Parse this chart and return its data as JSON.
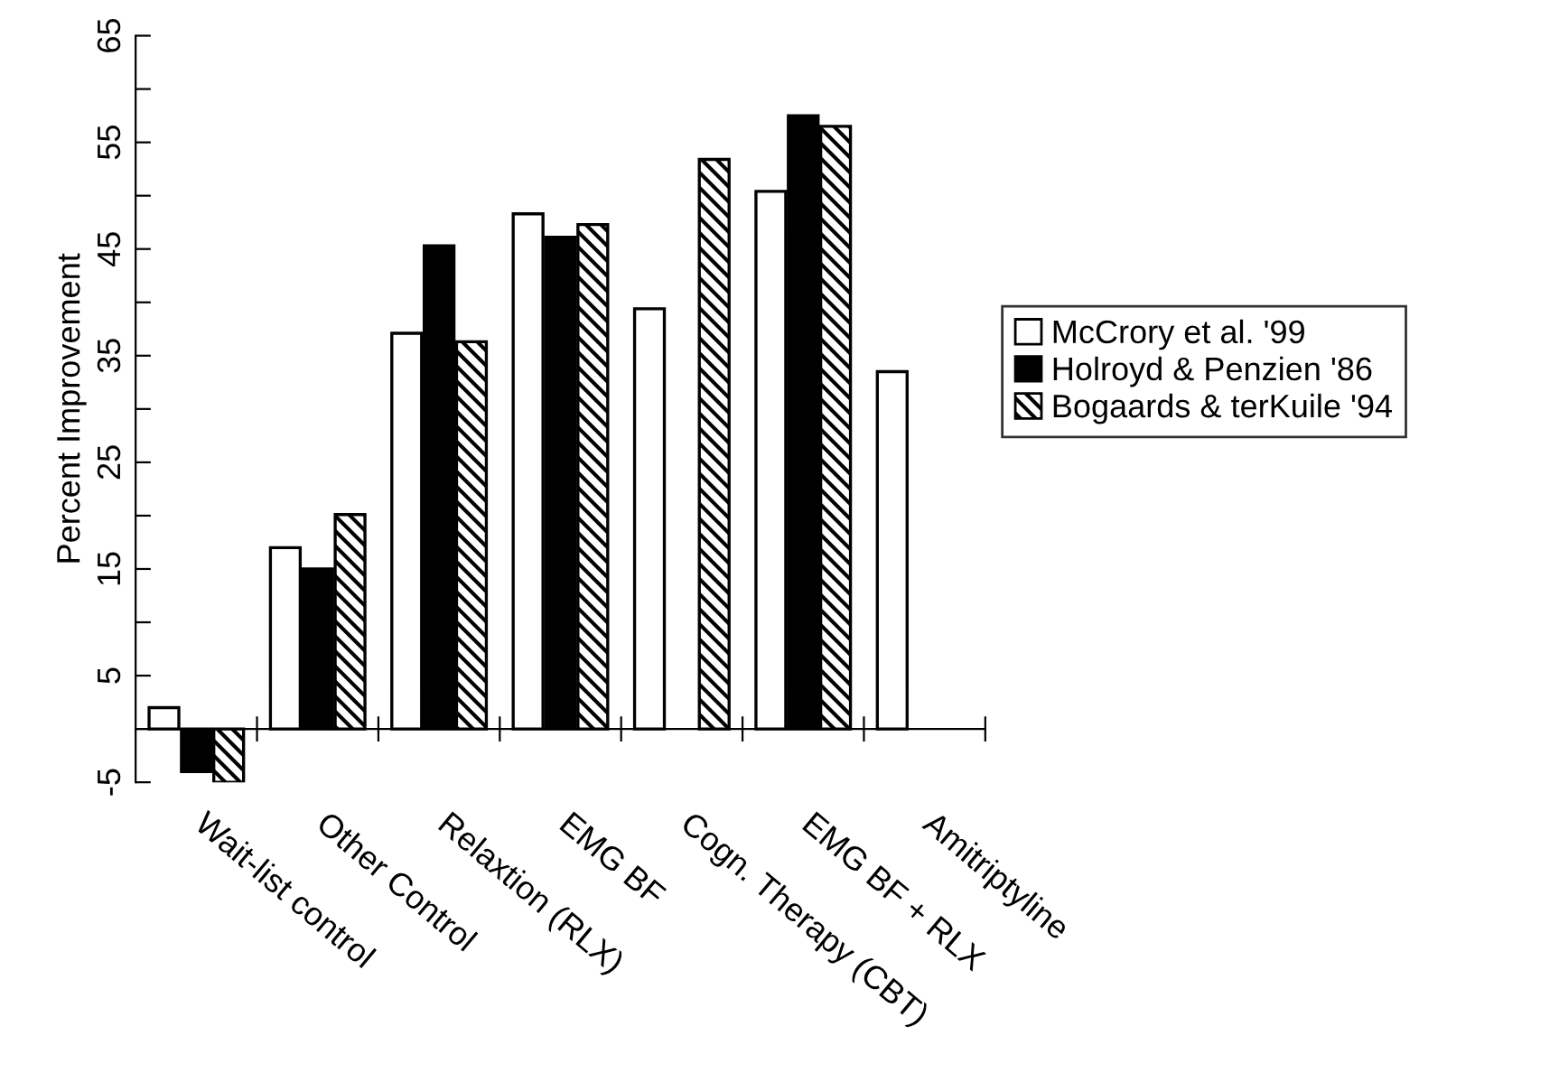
{
  "chart_data": {
    "type": "bar",
    "ylabel": "Percent Improvement",
    "categories": [
      "Wait-list control",
      "Other Control",
      "Relaxtion (RLX)",
      "EMG BF",
      "Cogn. Therapy (CBT)",
      "EMG BF + RLX",
      "Amitriptyline"
    ],
    "series": [
      {
        "name": "McCrory et al. '99",
        "color": "#ffffff",
        "values": [
          2.0,
          17.0,
          37.1,
          48.3,
          39.4,
          50.4,
          33.5
        ]
      },
      {
        "name": "Holroyd & Penzien '86",
        "color": "#000000",
        "values": [
          -4.0,
          15.0,
          45.3,
          46.1,
          null,
          57.5,
          null
        ]
      },
      {
        "name": "Bogaards & terKuile '94",
        "color": "#000000",
        "values": [
          -5.0,
          20.1,
          36.3,
          47.3,
          53.4,
          56.5,
          null
        ]
      }
    ],
    "ylim": [
      -5,
      65
    ],
    "yticks": [
      -5,
      {
        "value": 0,
        "label": null
      },
      5,
      {
        "value": 10,
        "label": null
      },
      15,
      {
        "value": 20,
        "label": null
      },
      25,
      {
        "value": 30,
        "label": null
      },
      35,
      {
        "value": 40,
        "label": null
      },
      45,
      {
        "value": 50,
        "label": null
      },
      55,
      {
        "value": 60,
        "label": null
      },
      65
    ],
    "grid": false,
    "legend": "right"
  }
}
